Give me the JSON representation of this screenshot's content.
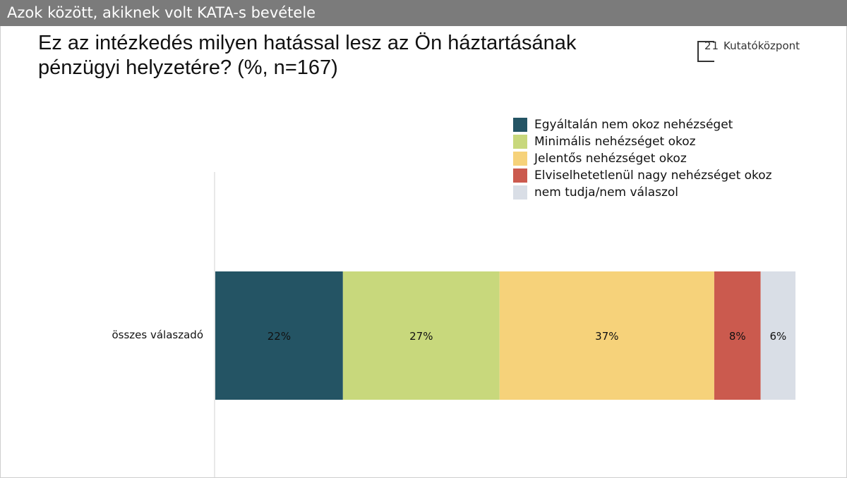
{
  "header": {
    "banner": "Azok között, akiknek volt KATA-s bevétele"
  },
  "title": "Ez az intézkedés milyen hatással lesz az Ön háztartásának pénzügyi helyzetére? (%, n=167)",
  "logo": {
    "number": "21",
    "text": "Kutatóközpont"
  },
  "chart_data": {
    "type": "bar",
    "orientation": "horizontal",
    "stacked": true,
    "categories": [
      "összes válaszadó"
    ],
    "series": [
      {
        "name": "Egyáltalán nem okoz nehézséget",
        "values": [
          22
        ],
        "label": "22%",
        "color": "#245464"
      },
      {
        "name": "Minimális nehézséget okoz",
        "values": [
          27
        ],
        "label": "27%",
        "color": "#c8d87c"
      },
      {
        "name": "Jelentős nehézséget okoz",
        "values": [
          37
        ],
        "label": "37%",
        "color": "#f6d27a"
      },
      {
        "name": "Elviselhetetlenül nagy nehézséget okoz",
        "values": [
          8
        ],
        "label": "8%",
        "color": "#cb5a4e"
      },
      {
        "name": "nem tudja/nem válaszol",
        "values": [
          6
        ],
        "label": "6%",
        "color": "#d9dee6"
      }
    ],
    "xlim": [
      0,
      100
    ],
    "grid": false,
    "legend_position": "top-right"
  }
}
